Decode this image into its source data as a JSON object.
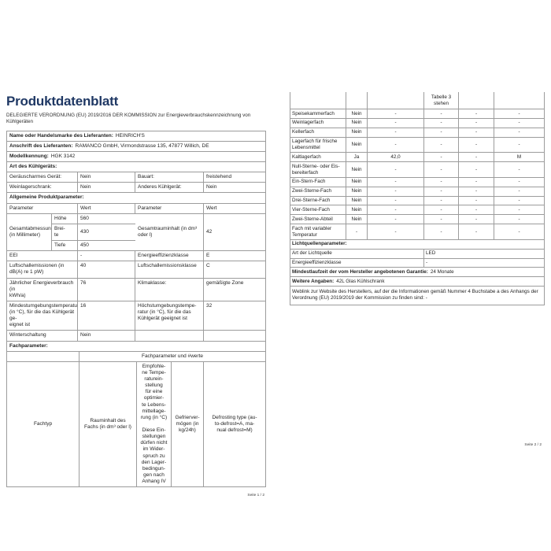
{
  "colors": {
    "title_accent": "#1f3864",
    "text": "#1f1f1f",
    "table_border": "#9c9c9c"
  },
  "page1": {
    "title": "Produktdatenblatt",
    "subtitle": "DELEGIERTE VERORDNUNG (EU) 2019/2016 DER KOMMISSION zur Energieverbrauchskennzeichnung von\nKühlgeräten",
    "footer": "Seite 1 / 2",
    "rows": [
      {
        "type": "labelvalue",
        "name": "supplier-name-row",
        "label": "Name oder Handelsmarke des Lieferanten:",
        "value": "HEINRICH'S"
      },
      {
        "type": "labelvalue",
        "name": "supplier-address-row",
        "label": "Anschrift des Lieferanten:",
        "value": "RAMANCO GmbH, Virmondstrasse 135, 47877 Willich, DE"
      },
      {
        "type": "labelvalue",
        "name": "model-id-row",
        "label": "Modellkennung:",
        "value": "HGK 3142"
      },
      {
        "type": "section",
        "name": "appliance-type-header-row",
        "label": "Art des Kühlgeräts:"
      },
      {
        "type": "cells4",
        "name": "quiet-appliance-row",
        "cells": [
          "Geräuscharmes Gerät:",
          "Nein",
          "Bauart:",
          "freistehend"
        ]
      },
      {
        "type": "cells4",
        "name": "wine-storage-row",
        "cells": [
          "Weinlagerschrank:",
          "Nein",
          "Anderes Kühlgerät:",
          "Nein"
        ]
      },
      {
        "type": "section",
        "name": "general-parameters-header-row",
        "label": "Allgemeine Produktparameter:"
      },
      {
        "type": "cells4",
        "name": "parameter-header-row",
        "cells": [
          "Parameter",
          "Wert",
          "Parameter",
          "Wert"
        ]
      },
      {
        "type": "dims",
        "name": "dimensions-row",
        "label": "Gesamtabmessungen\n(in Millimeter)",
        "subs": [
          [
            "Höhe",
            "560"
          ],
          [
            "Brei-\nte",
            "430"
          ],
          [
            "Tiefe",
            "450"
          ]
        ],
        "right_label": "Gesamtrauminhalt (in dm³\noder l)",
        "right_value": "42"
      },
      {
        "type": "cells4",
        "name": "eei-row",
        "cells": [
          "EEI",
          "-",
          "Energieeffizienzklasse",
          "E"
        ]
      },
      {
        "type": "cells4",
        "name": "noise-row",
        "cells": [
          "Luftschallemissionen (in\ndB(A) re 1 pW)",
          "40",
          "Luftschallemissionsklasse",
          "C"
        ]
      },
      {
        "type": "cells4",
        "name": "energy-consumption-row",
        "cells": [
          "Jährlicher Energieverbrauch (in\nkWh/a)",
          "76",
          "Klimaklasse:",
          "gemäßigte Zone"
        ]
      },
      {
        "type": "cells4",
        "name": "ambient-temperature-row",
        "cells": [
          "Mindestumgebungstemperatur\n(in °C), für die das Kühlgerät ge-\neignet ist",
          "16",
          "Höchstumgebungstempe-\nratur (in °C), für die das\nKühlgerät geeignet ist",
          "32"
        ]
      },
      {
        "type": "cells4",
        "name": "winter-setting-row",
        "cells": [
          "Winterschaltung",
          "Nein",
          "",
          ""
        ]
      },
      {
        "type": "section",
        "name": "compartment-parameters-header-row",
        "label": "Fachparameter:"
      },
      {
        "type": "fachheader",
        "name": "compartment-group-header-row",
        "left": "",
        "title": "Fachparameter und #werte"
      },
      {
        "type": "fachcols",
        "name": "compartment-column-header-row",
        "cells": [
          "Fachtyp",
          "Rauminhalt des\nFachs (in dm³ oder l)",
          "Empfohle-\nne Tempe-\nraturein-\nstellung\nfür eine\noptimier-\nte Lebens-\nmittellage-\nrung (in °C)\n\nDiese Ein-\nstellungen\ndürfen nicht\nim Wider-\nspruch zu\nden Lager-\nbedingun-\ngen nach\nAnhang IV",
          "Gefrierver-\nmögen (in\nkg/24h)",
          "Defrosting type (au-\nto-defrost=A, ma-\nnual defrost=M)"
        ]
      }
    ]
  },
  "page2": {
    "footer": "Seite 2 / 2",
    "continuation_cells": [
      "",
      "",
      "",
      "Tabelle 3\nstehen",
      "",
      ""
    ],
    "compartment_rows": [
      {
        "name": "speisekammer-row",
        "label": "Speisekammerfach",
        "cells": [
          "Nein",
          "-",
          "-",
          "-",
          "-"
        ]
      },
      {
        "name": "weinlager-row",
        "label": "Weinlagerfach",
        "cells": [
          "Nein",
          "-",
          "-",
          "-",
          "-"
        ]
      },
      {
        "name": "keller-row",
        "label": "Kellerfach",
        "cells": [
          "Nein",
          "-",
          "-",
          "-",
          "-"
        ]
      },
      {
        "name": "frische-lebensmittel-row",
        "label": "Lagerfach für frische\nLebensmittel",
        "cells": [
          "Nein",
          "-",
          "-",
          "-",
          "-"
        ]
      },
      {
        "name": "kaltlager-row",
        "label": "Kaltlagerfach",
        "cells": [
          "Ja",
          "42,0",
          "-",
          "-",
          "M"
        ]
      },
      {
        "name": "null-sterne-row",
        "label": "Null-Sterne- oder Eis-\nbereiterfach",
        "cells": [
          "Nein",
          "-",
          "-",
          "-",
          "-"
        ]
      },
      {
        "name": "ein-stern-row",
        "label": "Ein-Stern-Fach",
        "cells": [
          "Nein",
          "-",
          "-",
          "-",
          "-"
        ]
      },
      {
        "name": "zwei-sterne-row",
        "label": "Zwei-Sterne-Fach",
        "cells": [
          "Nein",
          "-",
          "-",
          "-",
          "-"
        ]
      },
      {
        "name": "drei-sterne-row",
        "label": "Drei-Sterne-Fach",
        "cells": [
          "Nein",
          "-",
          "-",
          "-",
          "-"
        ]
      },
      {
        "name": "vier-sterne-row",
        "label": "Vier-Sterne-Fach",
        "cells": [
          "Nein",
          "-",
          "-",
          "-",
          "-"
        ]
      },
      {
        "name": "zwei-sterne-abteil-row",
        "label": "Zwei-Sterne-Abteil",
        "cells": [
          "Nein",
          "-",
          "-",
          "-",
          "-"
        ]
      },
      {
        "name": "variable-temperatur-row",
        "label": "Fach mit variabler\nTemperatur",
        "cells": [
          "-",
          "-",
          "-",
          "-",
          "-"
        ]
      }
    ],
    "light_header": "Lichtquellenparameter:",
    "light_rows": [
      {
        "name": "light-type-row",
        "label": "Art der Lichtquelle",
        "value": "LED"
      },
      {
        "name": "light-class-row",
        "label": "Energieeffizienzklasse",
        "value": "-"
      }
    ],
    "warranty_label": "Mindestlaufzeit der vom Hersteller angebotenen Garantie:",
    "warranty_value": "24 Monate",
    "more_label": "Weitere Angaben:",
    "more_value": "42L Glas Kühlschrank",
    "weblink": "Weblink zur Website des Herstellers, auf der die Informationen gemäß Nummer 4 Buchstabe a des Anhangs der\nVerordnung (EU) 2019/2019 der Kommission zu finden sind:  -"
  }
}
